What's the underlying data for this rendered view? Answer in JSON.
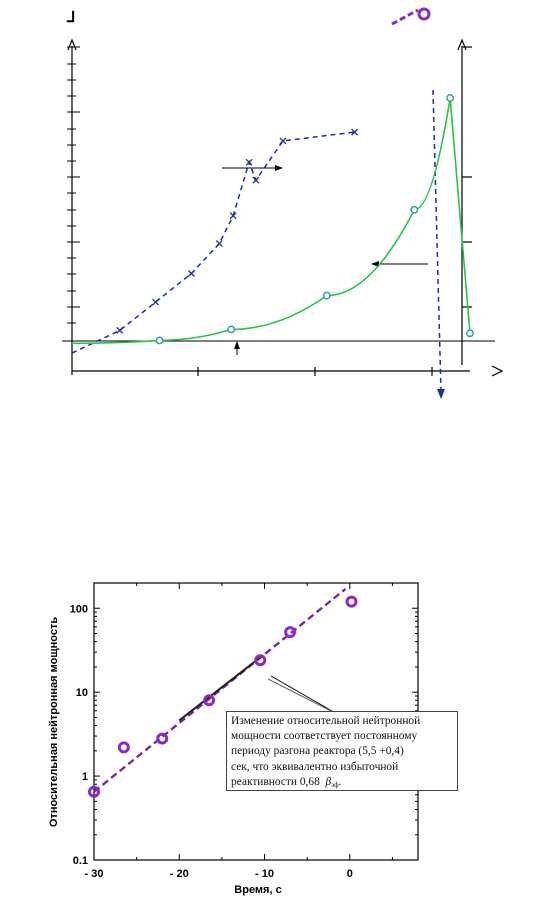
{
  "chart_data": [
    {
      "type": "line",
      "title": "",
      "xlabel": "",
      "ylabel": "",
      "series": [
        {
          "style": "dashed-x-markers",
          "color": "#1a2fa0",
          "points": [
            [
              0.0,
              0.055
            ],
            [
              0.12,
              0.125
            ],
            [
              0.21,
              0.212
            ],
            [
              0.3,
              0.3
            ],
            [
              0.37,
              0.392
            ],
            [
              0.405,
              0.478
            ],
            [
              0.445,
              0.642
            ],
            [
              0.462,
              0.587
            ],
            [
              0.53,
              0.708
            ],
            [
              0.71,
              0.735
            ]
          ]
        },
        {
          "style": "solid-o-markers",
          "color": "#22c845",
          "points": [
            [
              0.0,
              0.085
            ],
            [
              0.22,
              0.094
            ],
            [
              0.4,
              0.128
            ],
            [
              0.64,
              0.232
            ],
            [
              0.86,
              0.496
            ],
            [
              0.95,
              0.84
            ],
            [
              1.0,
              0.116
            ]
          ]
        }
      ],
      "arrow_up_label": "⅃",
      "legend_top_right": "violet dashed line with circle marker"
    },
    {
      "type": "scatter",
      "title": "",
      "xlabel": "Время, с",
      "ylabel": "Относительная нейтронная мощность",
      "y_scale": "log",
      "ylim": [
        0.1,
        200
      ],
      "xlim": [
        -30,
        8
      ],
      "x_ticks": [
        "- 30",
        "- 20",
        "- 10",
        "0"
      ],
      "y_ticks": [
        "0.1",
        "1",
        "10",
        "100"
      ],
      "measured_points": [
        [
          -30,
          0.65
        ],
        [
          -26.5,
          2.2
        ],
        [
          -22,
          2.8
        ],
        [
          -16.5,
          8
        ],
        [
          -10.5,
          24
        ],
        [
          -7,
          52
        ],
        [
          0.2,
          120
        ]
      ],
      "fit_line": [
        [
          -30,
          0.65
        ],
        [
          -0.5,
          170
        ]
      ],
      "solid_segment": [
        [
          -20,
          4.6
        ],
        [
          -10.5,
          26
        ]
      ],
      "annotation": {
        "line1": "Изменение относительной нейтронной",
        "line2": "мощности соответствует постоянному",
        "line3": "периоду разгона реактора (5,5 +0,4)",
        "line4": "сек, что эквивалентно избыточной",
        "line5_prefix": "реактивности 0,68",
        "symbol": "β",
        "subscript": "эф",
        "suffix": "."
      }
    }
  ],
  "colors": {
    "blue": "#1a2fa0",
    "green": "#22c845",
    "violet": "#8a2bc8",
    "axis": "#000000"
  }
}
